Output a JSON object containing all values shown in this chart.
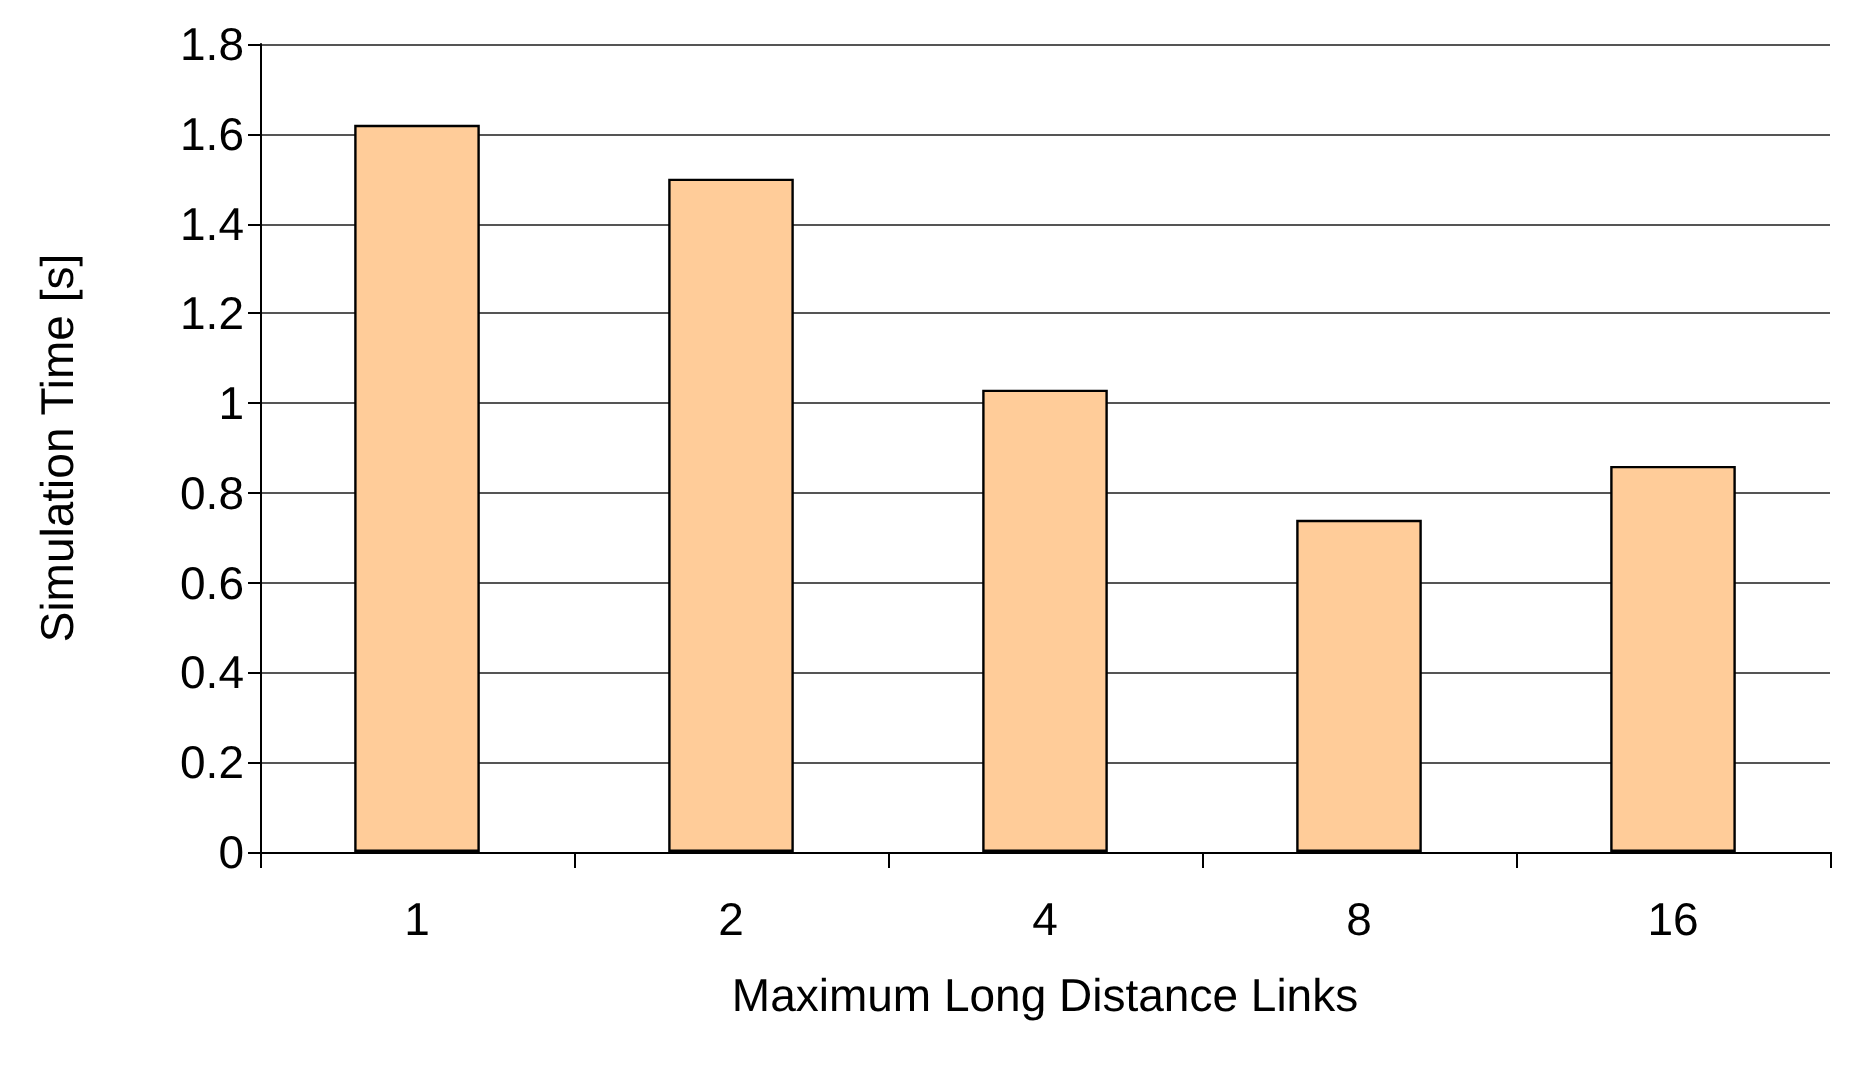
{
  "chart_data": {
    "type": "bar",
    "xlabel": "Maximum Long Distance Links",
    "ylabel": "Simulation Time [s]",
    "categories": [
      "1",
      "2",
      "4",
      "8",
      "16"
    ],
    "values": [
      1.62,
      1.5,
      1.03,
      0.74,
      0.86
    ],
    "color": "#ffcc99",
    "ylim": [
      0,
      1.8
    ],
    "yticks": [
      0,
      0.2,
      0.4,
      0.6,
      0.8,
      1,
      1.2,
      1.4,
      1.6,
      1.8
    ],
    "grid": "y"
  }
}
